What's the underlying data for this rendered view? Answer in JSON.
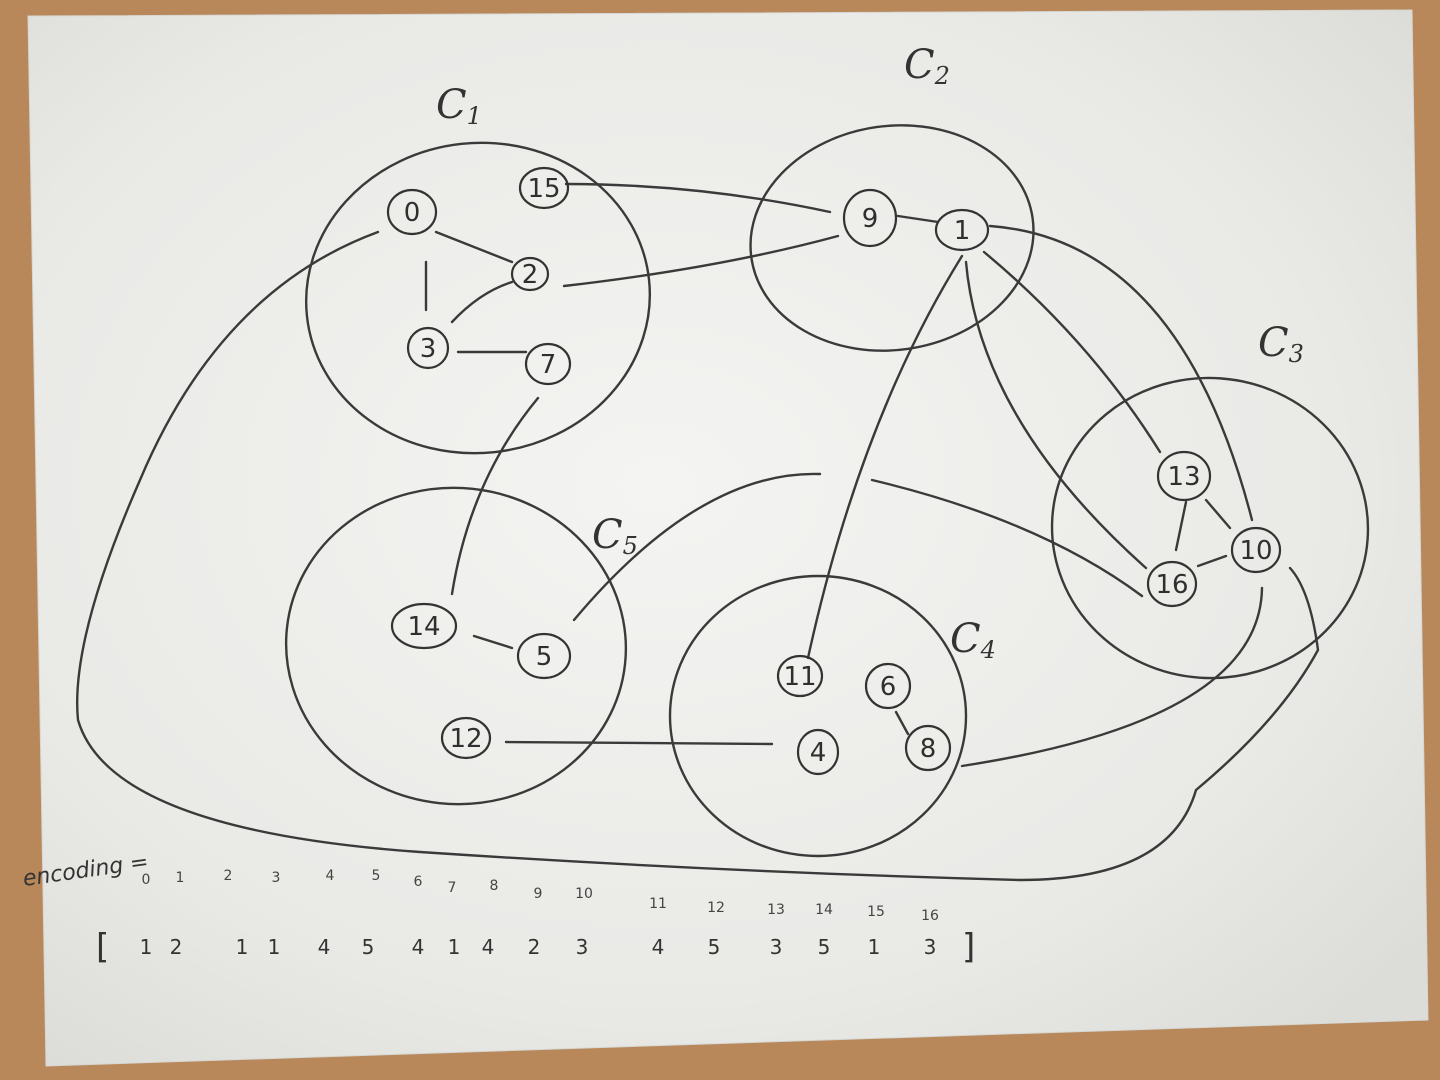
{
  "clusters": [
    {
      "id": "C1",
      "letter": "C",
      "sub": "1"
    },
    {
      "id": "C2",
      "letter": "C",
      "sub": "2"
    },
    {
      "id": "C3",
      "letter": "C",
      "sub": "3"
    },
    {
      "id": "C4",
      "letter": "C",
      "sub": "4"
    },
    {
      "id": "C5",
      "letter": "C",
      "sub": "5"
    }
  ],
  "nodes": [
    "0",
    "1",
    "2",
    "3",
    "4",
    "5",
    "6",
    "7",
    "8",
    "9",
    "10",
    "11",
    "12",
    "13",
    "14",
    "15",
    "16"
  ],
  "edges": [
    [
      "0",
      "2"
    ],
    [
      "0",
      "3"
    ],
    [
      "3",
      "2"
    ],
    [
      "3",
      "7"
    ],
    [
      "15",
      "9"
    ],
    [
      "2",
      "9"
    ],
    [
      "9",
      "1"
    ],
    [
      "1",
      "13"
    ],
    [
      "1",
      "10"
    ],
    [
      "1",
      "16"
    ],
    [
      "1",
      "11"
    ],
    [
      "7",
      "14"
    ],
    [
      "14",
      "5"
    ],
    [
      "5",
      "16"
    ],
    [
      "13",
      "16"
    ],
    [
      "13",
      "10"
    ],
    [
      "16",
      "10"
    ],
    [
      "12",
      "4"
    ],
    [
      "6",
      "8"
    ],
    [
      "8",
      "10"
    ],
    [
      "0",
      "10"
    ]
  ],
  "encoding": {
    "title": "encoding =",
    "open_bracket": "[",
    "close_bracket": "]",
    "indices": [
      "0",
      "1",
      "2",
      "3",
      "4",
      "5",
      "6",
      "7",
      "8",
      "9",
      "10",
      "11",
      "12",
      "13",
      "14",
      "15",
      "16"
    ],
    "values": [
      "1",
      "2",
      "1",
      "1",
      "4",
      "5",
      "4",
      "1",
      "4",
      "2",
      "3",
      "4",
      "5",
      "3",
      "5",
      "1",
      "3"
    ]
  },
  "colors": {
    "paper": "#f1f1ef",
    "table": "#b8875a",
    "pencil": "#3a3a3a"
  }
}
